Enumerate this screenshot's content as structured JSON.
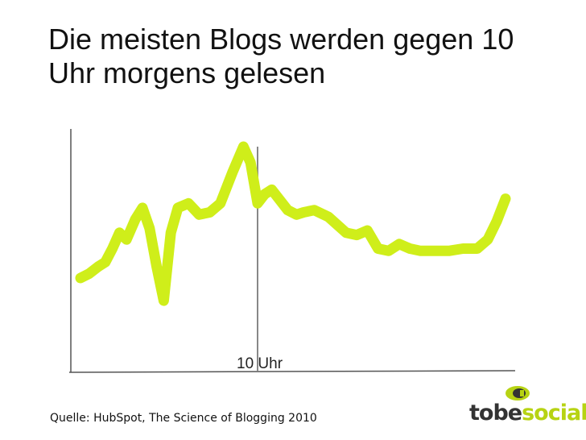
{
  "title": "Die meisten Blogs werden gegen 10 Uhr morgens gelesen",
  "source": "Quelle: HubSpot, The Science of Blogging 2010",
  "logo": {
    "part1": "tobe",
    "part2": "social",
    "color1": "#333333",
    "color2": "#b7d313"
  },
  "colors": {
    "line": "#cfee1a",
    "axis": "#555555",
    "marker": "#888888"
  },
  "chart_data": {
    "type": "line",
    "title": "",
    "xlabel": "",
    "ylabel": "",
    "grid": false,
    "marker_label": "10 Uhr",
    "marker_x": 10,
    "xlim": [
      0,
      24
    ],
    "ylim": [
      0,
      100
    ],
    "x": [
      0,
      0.5,
      1,
      1.4,
      1.8,
      2.2,
      2.6,
      3.1,
      3.5,
      3.9,
      4.3,
      4.7,
      5.1,
      5.5,
      6.1,
      6.7,
      7.3,
      7.9,
      8.6,
      9.2,
      9.6,
      10.0,
      10.4,
      10.8,
      11.2,
      11.7,
      12.2,
      12.6,
      13.2,
      14.0,
      15.0,
      15.6,
      16.2,
      16.8,
      17.4,
      18.0,
      18.6,
      19.2,
      20.0,
      20.8,
      21.6,
      22.4,
      23.0,
      23.5,
      24.0
    ],
    "y": [
      35,
      37,
      40,
      42,
      48,
      55,
      52,
      61,
      66,
      57,
      40,
      25,
      55,
      66,
      68,
      63,
      64,
      68,
      82,
      93,
      86,
      68,
      72,
      74,
      70,
      65,
      63,
      64,
      65,
      62,
      55,
      54,
      56,
      48,
      47,
      50,
      48,
      47,
      47,
      47,
      48,
      48,
      52,
      60,
      70
    ]
  }
}
